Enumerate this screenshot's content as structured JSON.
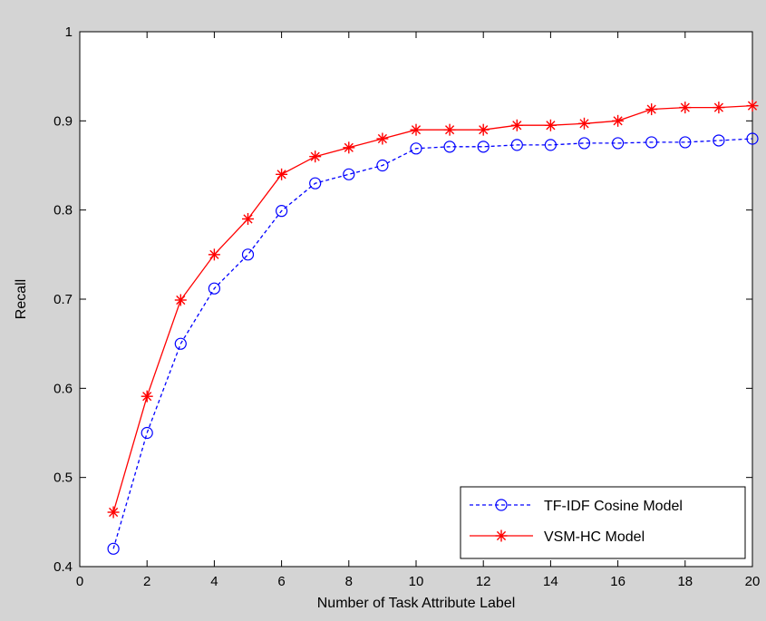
{
  "chart_data": {
    "type": "line",
    "xlabel": "Number of Task Attribute Label",
    "ylabel": "Recall",
    "xlim": [
      0,
      20
    ],
    "ylim": [
      0.4,
      1
    ],
    "xticks": [
      "0",
      "2",
      "4",
      "6",
      "8",
      "10",
      "12",
      "14",
      "16",
      "18",
      "20"
    ],
    "yticks": [
      "0.4",
      "0.5",
      "0.6",
      "0.7",
      "0.8",
      "0.9",
      "1"
    ],
    "grid": false,
    "legend_position": "bottom-right",
    "x": [
      1,
      2,
      3,
      4,
      5,
      6,
      7,
      8,
      9,
      10,
      11,
      12,
      13,
      14,
      15,
      16,
      17,
      18,
      19,
      20
    ],
    "series": [
      {
        "name": "TF-IDF Cosine Model",
        "color": "#0000ff",
        "line_style": "dashed",
        "marker": "circle",
        "values": [
          0.42,
          0.55,
          0.65,
          0.712,
          0.75,
          0.799,
          0.83,
          0.84,
          0.85,
          0.869,
          0.871,
          0.871,
          0.873,
          0.873,
          0.875,
          0.875,
          0.876,
          0.876,
          0.878,
          0.88
        ]
      },
      {
        "name": "VSM-HC Model",
        "color": "#ff0000",
        "line_style": "solid",
        "marker": "asterisk",
        "values": [
          0.461,
          0.591,
          0.699,
          0.75,
          0.79,
          0.84,
          0.86,
          0.87,
          0.88,
          0.89,
          0.89,
          0.89,
          0.895,
          0.895,
          0.897,
          0.9,
          0.913,
          0.915,
          0.915,
          0.917
        ]
      }
    ]
  }
}
